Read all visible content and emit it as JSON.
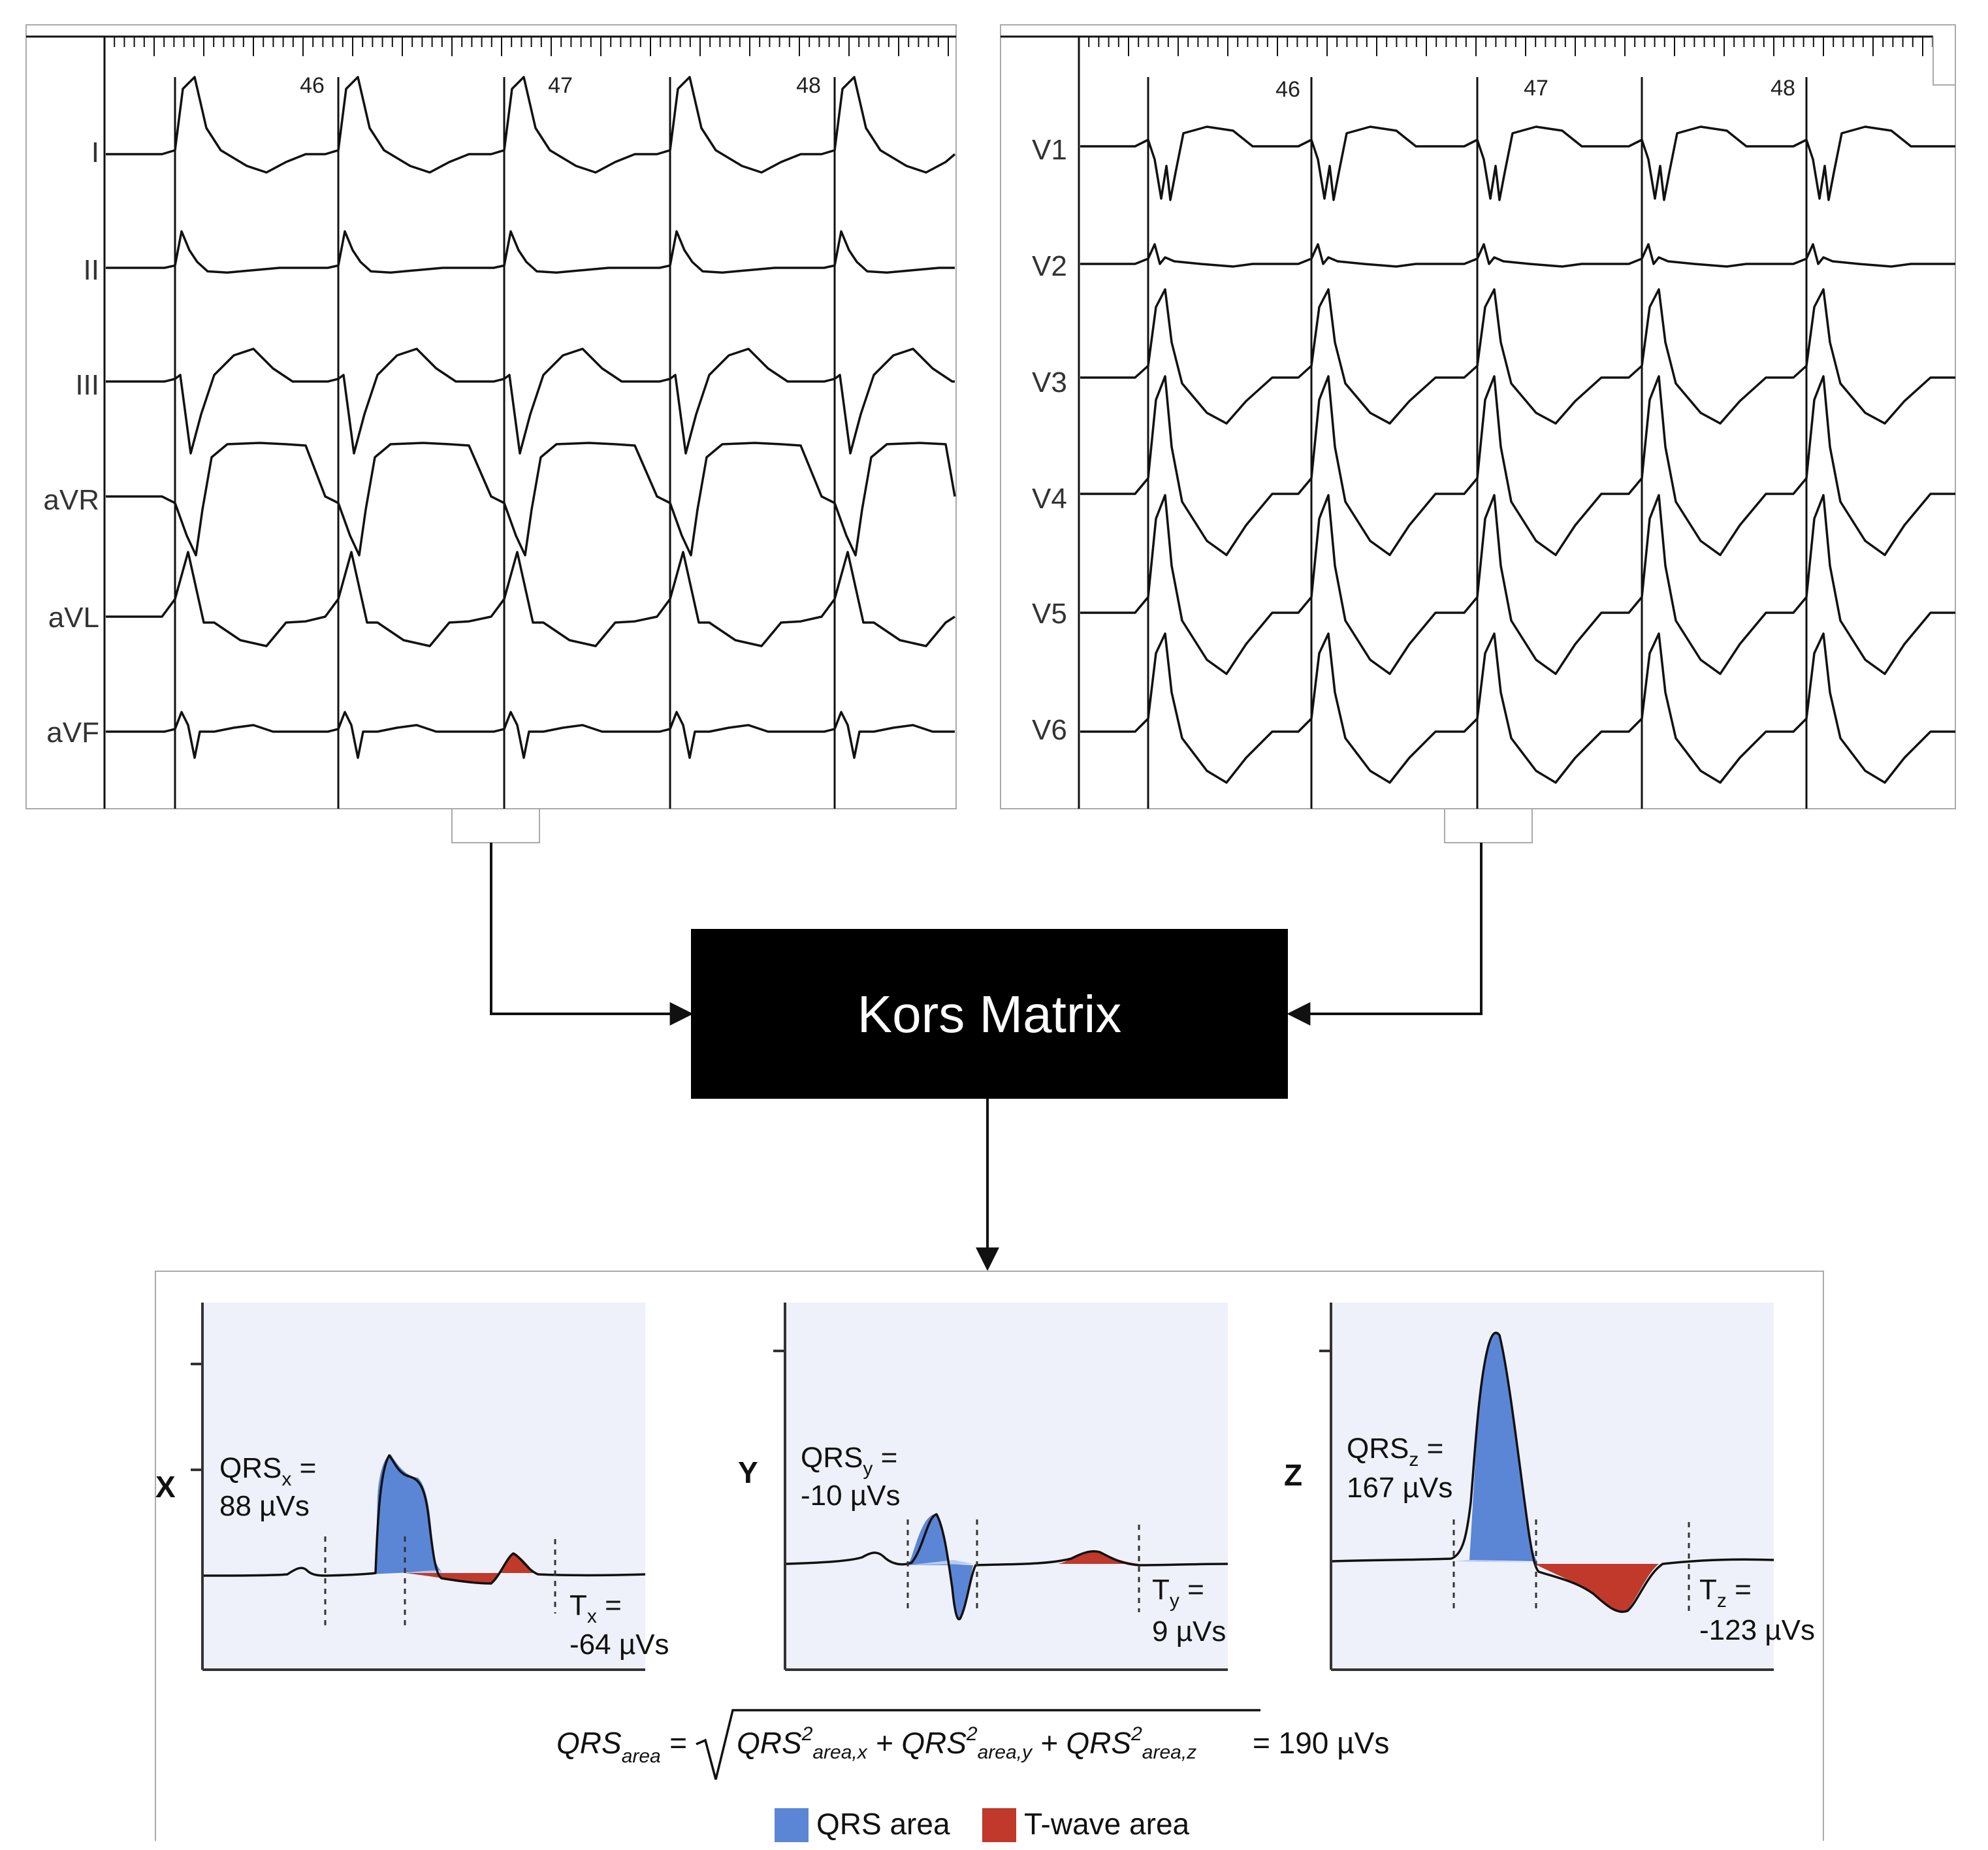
{
  "ecg_limb": {
    "leads": [
      "I",
      "II",
      "III",
      "aVR",
      "aVL",
      "aVF"
    ],
    "time_ticks": [
      "46",
      "47",
      "48"
    ]
  },
  "ecg_precordial": {
    "leads": [
      "V1",
      "V2",
      "V3",
      "V4",
      "V5",
      "V6"
    ],
    "time_ticks": [
      "46",
      "47",
      "48"
    ]
  },
  "kors_box": {
    "label": "Kors Matrix"
  },
  "vcg_panels": [
    {
      "axis": "X",
      "qrs_label": "QRS",
      "qrs_sub": "x",
      "qrs_eq": " =",
      "qrs_value": "88 µVs",
      "t_label": "T",
      "t_sub": "x",
      "t_eq": " =",
      "t_value": "-64 µVs"
    },
    {
      "axis": "Y",
      "qrs_label": "QRS",
      "qrs_sub": "y",
      "qrs_eq": " =",
      "qrs_value": "-10 µVs",
      "t_label": "T",
      "t_sub": "y",
      "t_eq": " =",
      "t_value": "9 µVs"
    },
    {
      "axis": "Z",
      "qrs_label": "QRS",
      "qrs_sub": "z",
      "qrs_eq": " =",
      "qrs_value": "167 µVs",
      "t_label": "T",
      "t_sub": "z",
      "t_eq": " =",
      "t_value": "-123 µVs"
    }
  ],
  "formula": {
    "lhs": "QRS",
    "lhs_sub": "area",
    "eq": " =",
    "term": "QRS",
    "sup": "2",
    "sub_x": "area,x",
    "sub_y": "area,y",
    "sub_z": "area,z",
    "plus": " + ",
    "result": "= 190 µVs"
  },
  "legend": [
    {
      "label": "QRS area",
      "color": "#5b86d6"
    },
    {
      "label": "T-wave area",
      "color": "#c0392b"
    }
  ],
  "colors": {
    "panel_bg": "#eef1f9",
    "box": "#000000"
  }
}
